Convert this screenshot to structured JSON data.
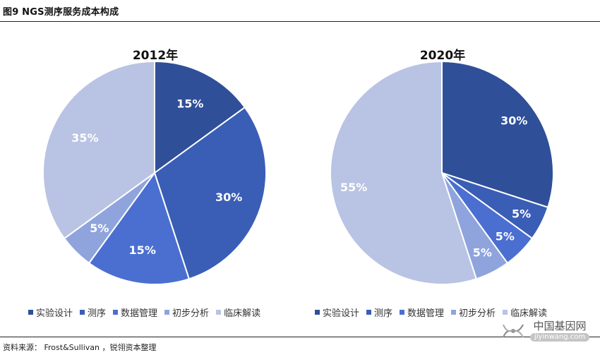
{
  "figure_title": "图9 NGS测序服务成本构成",
  "source_note": "资料来源： Frost&Sullivan ，锐翎资本整理",
  "watermark": {
    "name": "中国基因网",
    "url": "jiyinwang.com"
  },
  "colors": {
    "实验设计": "#2f4f99",
    "测序": "#3a5eb5",
    "数据管理": "#4a6fd0",
    "初步分析": "#8fa4dc",
    "临床解读": "#b9c3e3"
  },
  "chart_data": [
    {
      "type": "pie",
      "title": "2012年",
      "categories": [
        "实验设计",
        "测序",
        "数据管理",
        "初步分析",
        "临床解读"
      ],
      "values": [
        15,
        30,
        15,
        5,
        35
      ],
      "labels": [
        "15%",
        "30%",
        "15%",
        "5%",
        "35%"
      ],
      "legend": [
        "实验设计",
        "测序",
        "数据管理",
        "初步分析",
        "临床解读"
      ]
    },
    {
      "type": "pie",
      "title": "2020年",
      "categories": [
        "实验设计",
        "测序",
        "数据管理",
        "初步分析",
        "临床解读"
      ],
      "values": [
        30,
        5,
        5,
        5,
        55
      ],
      "labels": [
        "30%",
        "5%",
        "5%",
        "5%",
        "55%"
      ],
      "legend": [
        "实验设计",
        "测序",
        "数据管理",
        "初步分析",
        "临床解读"
      ]
    }
  ]
}
